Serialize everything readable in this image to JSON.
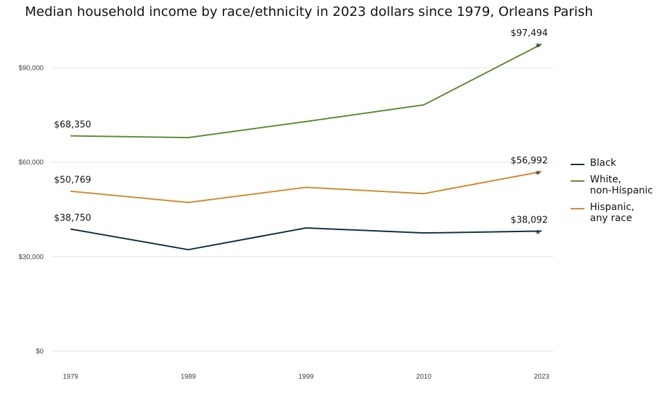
{
  "chart_data": {
    "type": "line",
    "title": "Median household income by race/ethnicity in 2023 dollars since 1979, Orleans Parish",
    "x": [
      "1979",
      "1989",
      "1999",
      "2010",
      "2023"
    ],
    "ylim": [
      0,
      100000
    ],
    "yticks": [
      0,
      30000,
      60000,
      90000
    ],
    "ytick_labels": [
      "$0",
      "$30,000",
      "$60,000",
      "$90,000"
    ],
    "grid": "horizontal",
    "legend_position": "right",
    "marker": "*",
    "series": [
      {
        "name": "Black",
        "color": "#0f2d3d",
        "values": [
          38750,
          32200,
          39100,
          37500,
          38092
        ],
        "start_label": "$38,750",
        "end_label": "$38,092"
      },
      {
        "name": "White, non-Hispanic",
        "color": "#5b8a32",
        "values": [
          68350,
          67800,
          72900,
          78200,
          97494
        ],
        "start_label": "$68,350",
        "end_label": "$97,494"
      },
      {
        "name": "Hispanic, any race",
        "color": "#d08a2b",
        "values": [
          50769,
          47200,
          52000,
          50000,
          56992
        ],
        "start_label": "$50,769",
        "end_label": "$56,992"
      }
    ]
  },
  "legend": [
    {
      "line1": "Black",
      "line2": "",
      "color": "#0f2d3d"
    },
    {
      "line1": "White,",
      "line2": "non-Hispanic",
      "color": "#5b8a32"
    },
    {
      "line1": "Hispanic,",
      "line2": "any race",
      "color": "#d08a2b"
    }
  ]
}
